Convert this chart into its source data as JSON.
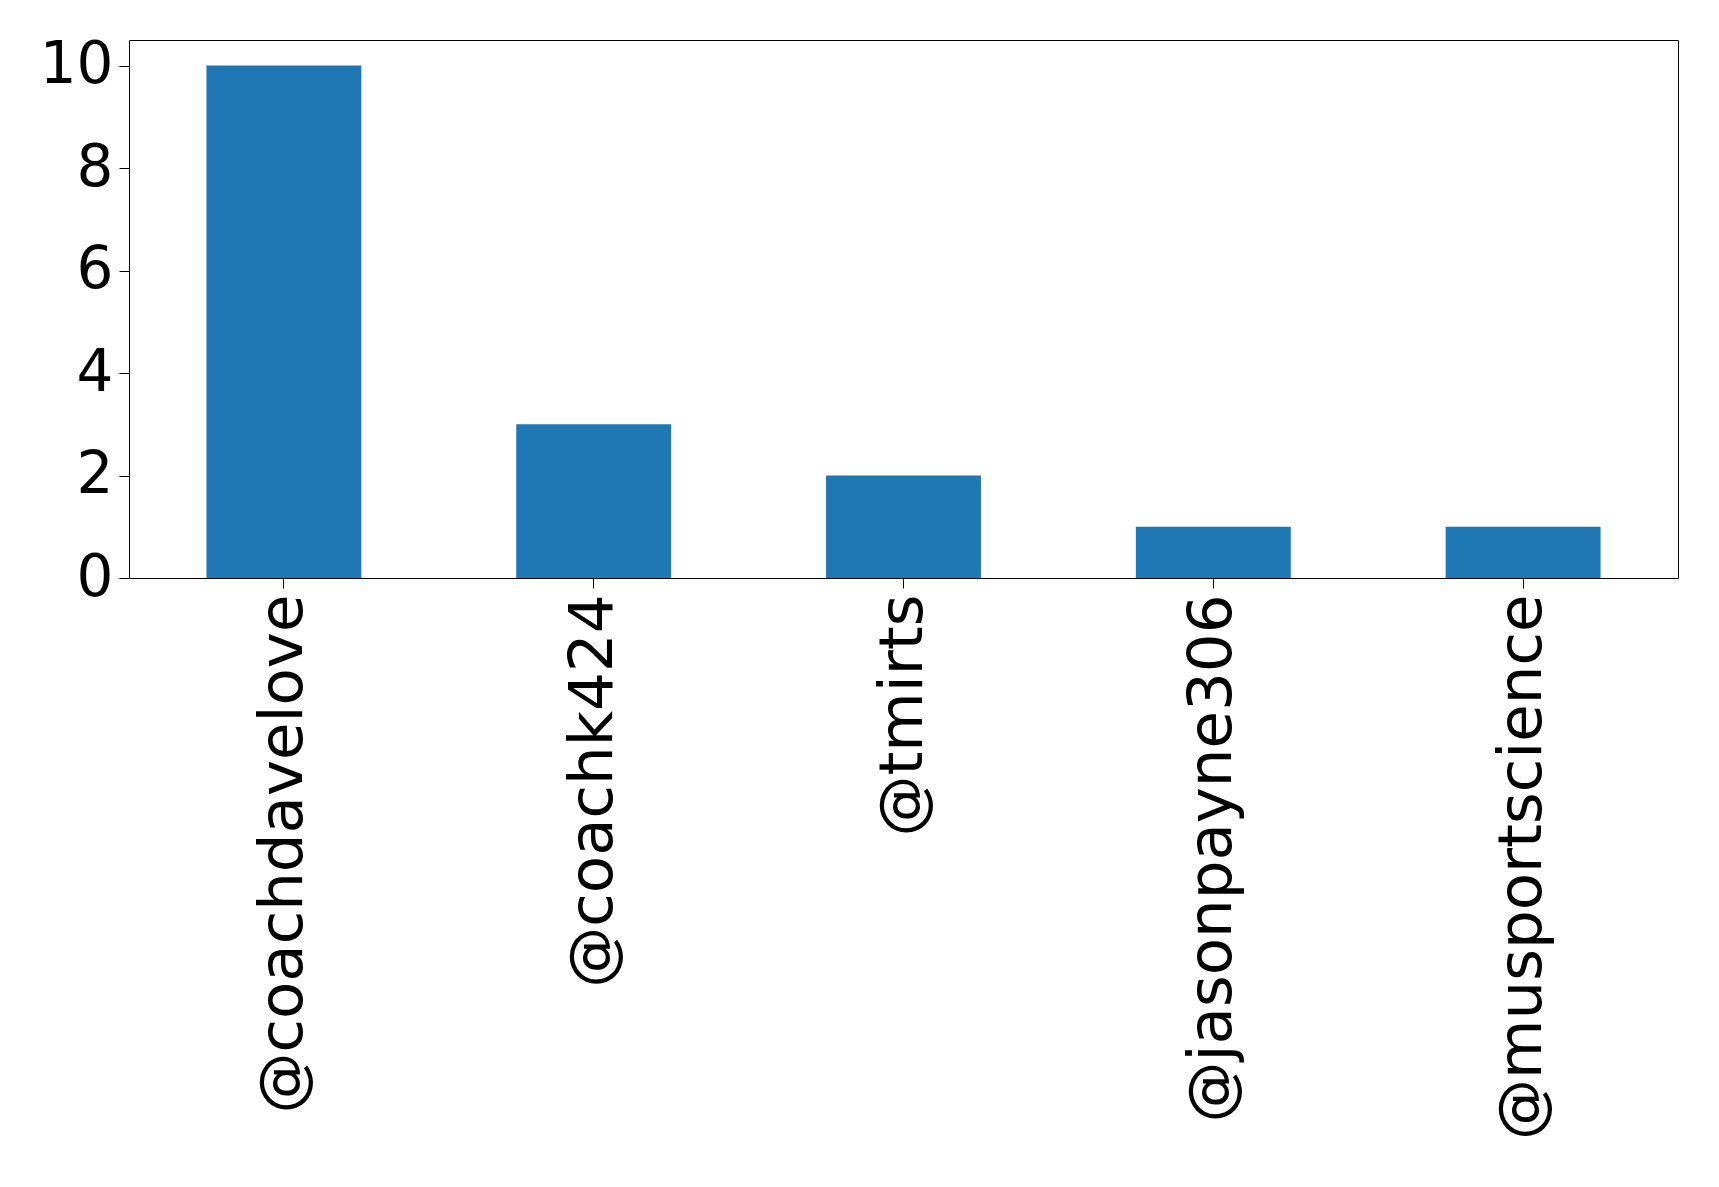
{
  "chart_data": {
    "type": "bar",
    "categories": [
      "@coachdavelove",
      "@coachk424",
      "@tmirts",
      "@jasonpayne306",
      "@musportscience"
    ],
    "values": [
      10,
      3,
      2,
      1,
      1
    ],
    "color": "#1f77b4",
    "ylim": [
      0,
      10.5
    ],
    "yticks": [
      0,
      2,
      4,
      6,
      8,
      10
    ],
    "grid": false
  }
}
